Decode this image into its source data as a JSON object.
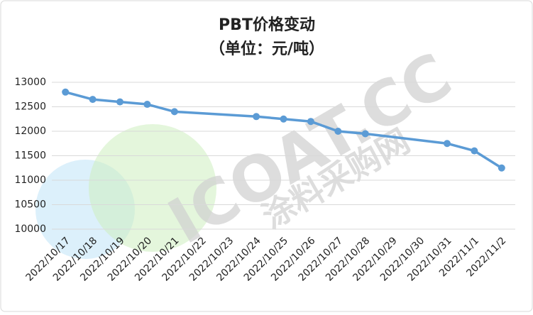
{
  "chart_data": {
    "type": "line",
    "title": "PBT价格变动",
    "subtitle": "（单位：元/吨）",
    "watermark": [
      "ICOAT.CC",
      "涂料采购网"
    ],
    "categories": [
      "2022/10/17",
      "2022/10/18",
      "2022/10/19",
      "2022/10/20",
      "2022/10/21",
      "2022/10/22",
      "2022/10/23",
      "2022/10/24",
      "2022/10/25",
      "2022/10/26",
      "2022/10/27",
      "2022/10/28",
      "2022/10/29",
      "2022/10/30",
      "2022/10/31",
      "2022/11/1",
      "2022/11/2"
    ],
    "values": [
      12800,
      12650,
      12600,
      12550,
      12400,
      null,
      null,
      12300,
      12250,
      12200,
      12000,
      11950,
      null,
      null,
      11750,
      11600,
      11250
    ],
    "color": "#5b9bd5",
    "connect_gaps": true,
    "ylim": [
      10000,
      13000
    ],
    "yticks": [
      10000,
      10500,
      11000,
      11500,
      12000,
      12500,
      13000
    ],
    "grid": true
  }
}
